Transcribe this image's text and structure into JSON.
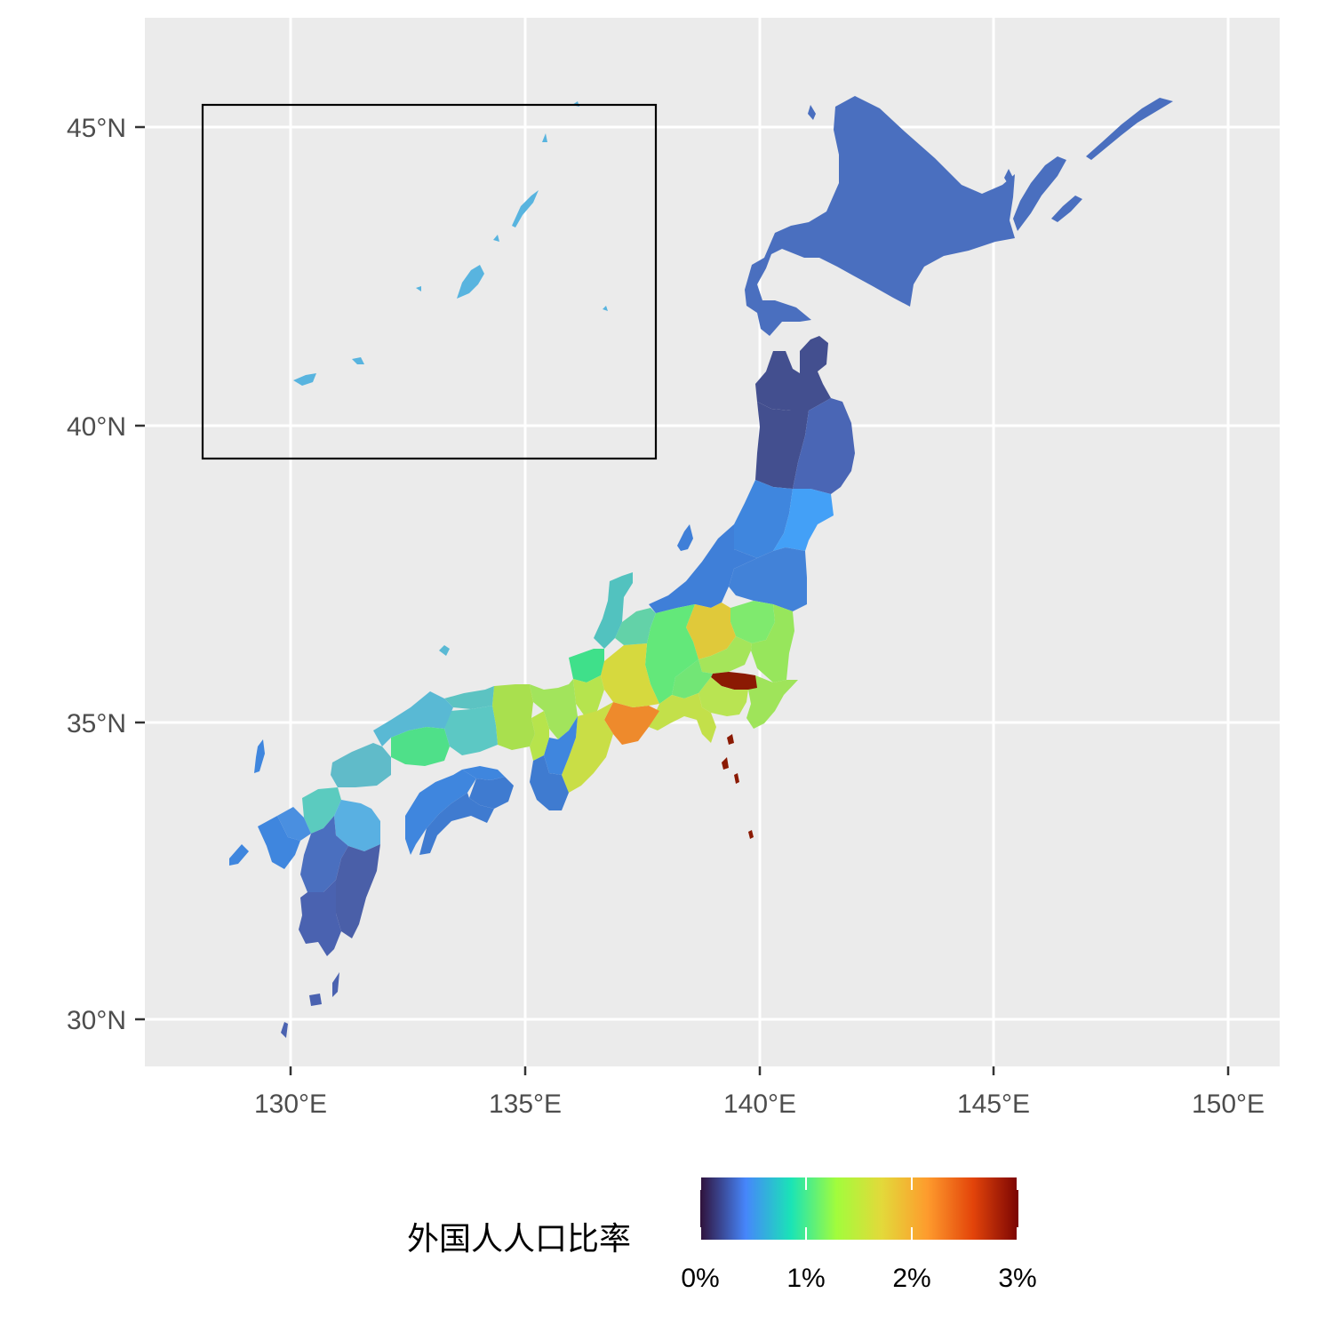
{
  "map": {
    "x_axis_labels": [
      "130°E",
      "135°E",
      "140°E",
      "145°E",
      "150°E"
    ],
    "y_axis_labels": [
      "45°N",
      "40°N",
      "35°N",
      "30°N"
    ],
    "panel_background": "#ebebeb",
    "grid_color": "#ffffff",
    "inset_box": true
  },
  "legend": {
    "title": "外国人人口比率",
    "tick_labels": [
      "0%",
      "1%",
      "2%",
      "3%"
    ],
    "range": [
      0,
      3
    ],
    "colormap": "turbo",
    "gradient_stops": [
      "#30123b",
      "#4686fb",
      "#1ae4b6",
      "#a2fc3c",
      "#e3d93a",
      "#fe9b2d",
      "#e3440a",
      "#7a0403"
    ]
  },
  "regions": [
    {
      "name": "hokkaido",
      "color": "#4a6fbf"
    },
    {
      "name": "aomori",
      "color": "#434f8f"
    },
    {
      "name": "iwate",
      "color": "#4a66b5"
    },
    {
      "name": "akita",
      "color": "#434f8f"
    },
    {
      "name": "miyagi",
      "color": "#43a0f7"
    },
    {
      "name": "yamagata",
      "color": "#3f86de"
    },
    {
      "name": "fukushima",
      "color": "#4282d8"
    },
    {
      "name": "niigata",
      "color": "#3f7fd8"
    },
    {
      "name": "tochigi",
      "color": "#7fea6e"
    },
    {
      "name": "ibaraki",
      "color": "#97e65c"
    },
    {
      "name": "gunma",
      "color": "#e0c93a"
    },
    {
      "name": "saitama",
      "color": "#a5e55a"
    },
    {
      "name": "chiba",
      "color": "#9fe45a"
    },
    {
      "name": "tokyo",
      "color": "#8b1a03"
    },
    {
      "name": "kanagawa",
      "color": "#b9e452"
    },
    {
      "name": "yamanashi",
      "color": "#72e676"
    },
    {
      "name": "nagano",
      "color": "#63e87a"
    },
    {
      "name": "shizuoka",
      "color": "#c3e04a"
    },
    {
      "name": "aichi",
      "color": "#ee8a2c"
    },
    {
      "name": "gifu",
      "color": "#d6d93e"
    },
    {
      "name": "toyama",
      "color": "#63d2a8"
    },
    {
      "name": "ishikawa",
      "color": "#52c2bf"
    },
    {
      "name": "fukui",
      "color": "#3fe08a"
    },
    {
      "name": "mie",
      "color": "#c9de46"
    },
    {
      "name": "shiga",
      "color": "#b6e44e"
    },
    {
      "name": "kyoto",
      "color": "#a2e45c"
    },
    {
      "name": "osaka",
      "color": "#b7e44c"
    },
    {
      "name": "hyogo",
      "color": "#a9e04e"
    },
    {
      "name": "nara",
      "color": "#3f86de"
    },
    {
      "name": "wakayama",
      "color": "#3f7bd0"
    },
    {
      "name": "tottori",
      "color": "#5cc3c2"
    },
    {
      "name": "shimane",
      "color": "#59b9d4"
    },
    {
      "name": "okayama",
      "color": "#5cc8c4"
    },
    {
      "name": "hiroshima",
      "color": "#4fe089"
    },
    {
      "name": "yamaguchi",
      "color": "#60bbc9"
    },
    {
      "name": "tokushima",
      "color": "#3f7bd0"
    },
    {
      "name": "kagawa",
      "color": "#3f86de"
    },
    {
      "name": "ehime",
      "color": "#3f86de"
    },
    {
      "name": "kochi",
      "color": "#3f7bd0"
    },
    {
      "name": "fukuoka",
      "color": "#5bcbbf"
    },
    {
      "name": "saga",
      "color": "#4a8fe0"
    },
    {
      "name": "nagasaki",
      "color": "#3f86de"
    },
    {
      "name": "oita",
      "color": "#59b0e2"
    },
    {
      "name": "kumamoto",
      "color": "#4a6fbf"
    },
    {
      "name": "miyazaki",
      "color": "#4a5fa8"
    },
    {
      "name": "kagoshima",
      "color": "#4a62b0"
    },
    {
      "name": "okinawa",
      "color": "#58b4df"
    }
  ]
}
